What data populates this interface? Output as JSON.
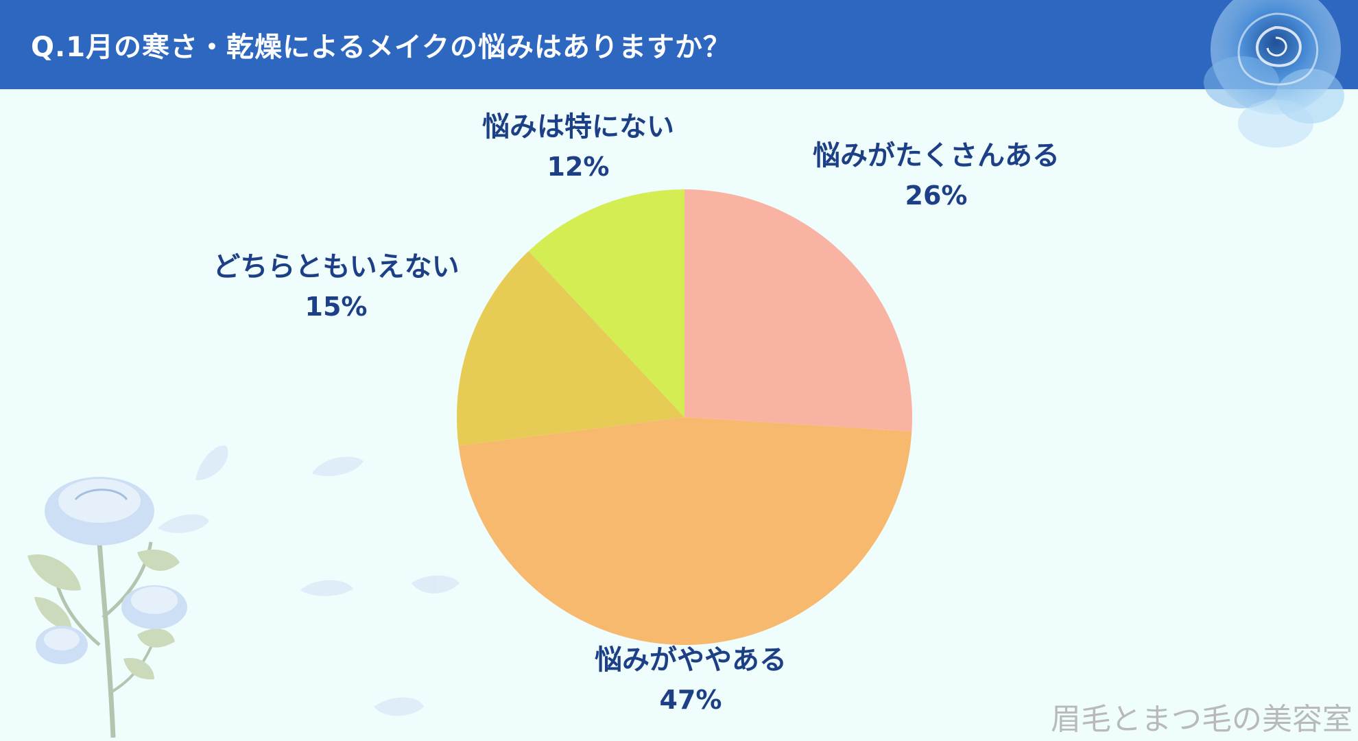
{
  "header": {
    "title": "Q.1月の寒さ・乾燥によるメイクの悩みはありますか？"
  },
  "chart_data": {
    "type": "pie",
    "title": "Q.1月の寒さ・乾燥によるメイクの悩みはありますか？",
    "start": "12 o'clock",
    "direction": "clockwise",
    "slices": [
      {
        "label": "悩みがたくさんある",
        "value": 26,
        "value_label": "26%",
        "color": "#f9b3a3"
      },
      {
        "label": "悩みがややある",
        "value": 47,
        "value_label": "47%",
        "color": "#f6b96e"
      },
      {
        "label": "どちらともいえない",
        "value": 15,
        "value_label": "15%",
        "color": "#e6cb55"
      },
      {
        "label": "悩みは特にない",
        "value": 12,
        "value_label": "12%",
        "color": "#d3ed52"
      }
    ]
  },
  "decor": {
    "top_right": "blue-rose-watercolor-icon",
    "bottom_left": "blue-rose-bouquet-icon",
    "petals": "falling-petals-icon"
  },
  "watermark": {
    "text": "眉毛とまつ毛の美容室"
  },
  "colors": {
    "header": "#2e67bf",
    "background": "#f0fdfd",
    "label_text": "#1c3f86",
    "watermark": "#b9b9b9"
  }
}
